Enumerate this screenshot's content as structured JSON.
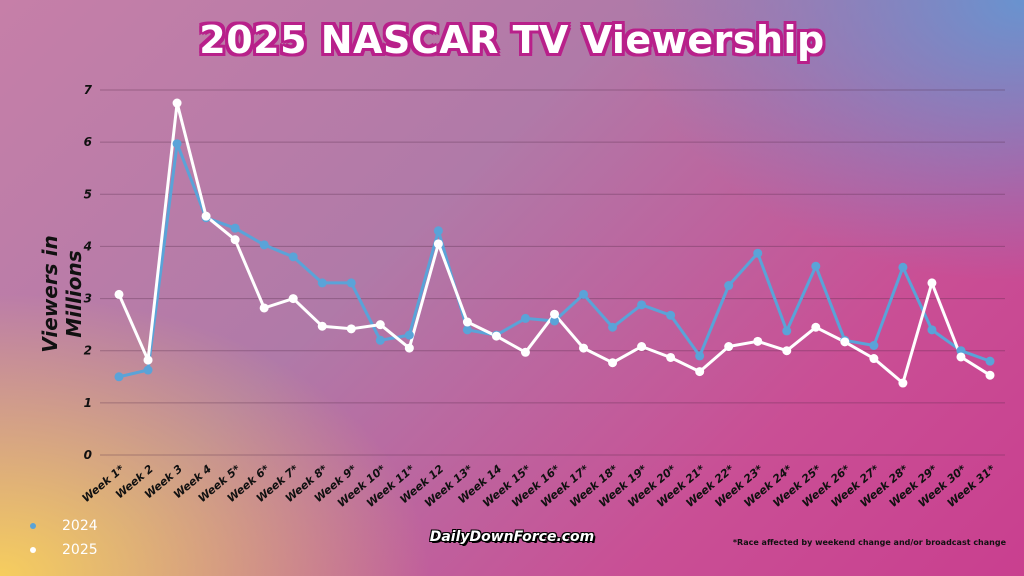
{
  "title": "2025 NASCAR TV Viewership",
  "logo_text": "DailyDownForce.com",
  "footnote": "*Race affected by weekend change and/or broadcast change",
  "chart_data": {
    "type": "line",
    "title": "2025 NASCAR TV Viewership",
    "ylabel": "Viewers in Millions",
    "xlabel": "",
    "ylim": [
      0,
      7
    ],
    "yticks": [
      0,
      1,
      2,
      3,
      4,
      5,
      6,
      7
    ],
    "grid": true,
    "legend_position": "bottom-left",
    "categories": [
      "Week 1*",
      "Week 2",
      "Week 3",
      "Week 4",
      "Week 5*",
      "Week 6*",
      "Week 7*",
      "Week 8*",
      "Week 9*",
      "Week 10*",
      "Week 11*",
      "Week 12",
      "Week 13*",
      "Week 14",
      "Week 15*",
      "Week 16*",
      "Week 17*",
      "Week 18*",
      "Week 19*",
      "Week 20*",
      "Week 21*",
      "Week 22*",
      "Week 23*",
      "Week 24*",
      "Week 25*",
      "Week 26*",
      "Week 27*",
      "Week 28*",
      "Week 29*",
      "Week 30*",
      "Week 31*"
    ],
    "series": [
      {
        "name": "2024",
        "color": "#5aa3d8",
        "values": [
          1.5,
          1.63,
          5.97,
          4.55,
          4.35,
          4.03,
          3.8,
          3.3,
          3.3,
          2.2,
          2.3,
          4.3,
          2.4,
          2.3,
          2.62,
          2.57,
          3.08,
          2.45,
          2.88,
          2.68,
          1.9,
          3.25,
          3.87,
          2.38,
          3.62,
          2.2,
          2.1,
          3.6,
          2.4,
          2.0,
          1.8
        ]
      },
      {
        "name": "2025",
        "color": "#ffffff",
        "values": [
          3.08,
          1.82,
          6.75,
          4.58,
          4.13,
          2.82,
          3.0,
          2.47,
          2.42,
          2.5,
          2.05,
          4.05,
          2.55,
          2.28,
          1.97,
          2.7,
          2.05,
          1.77,
          2.08,
          1.87,
          1.6,
          2.08,
          2.18,
          2.0,
          2.45,
          2.17,
          1.85,
          1.38,
          3.3,
          1.88,
          1.53
        ]
      }
    ]
  }
}
